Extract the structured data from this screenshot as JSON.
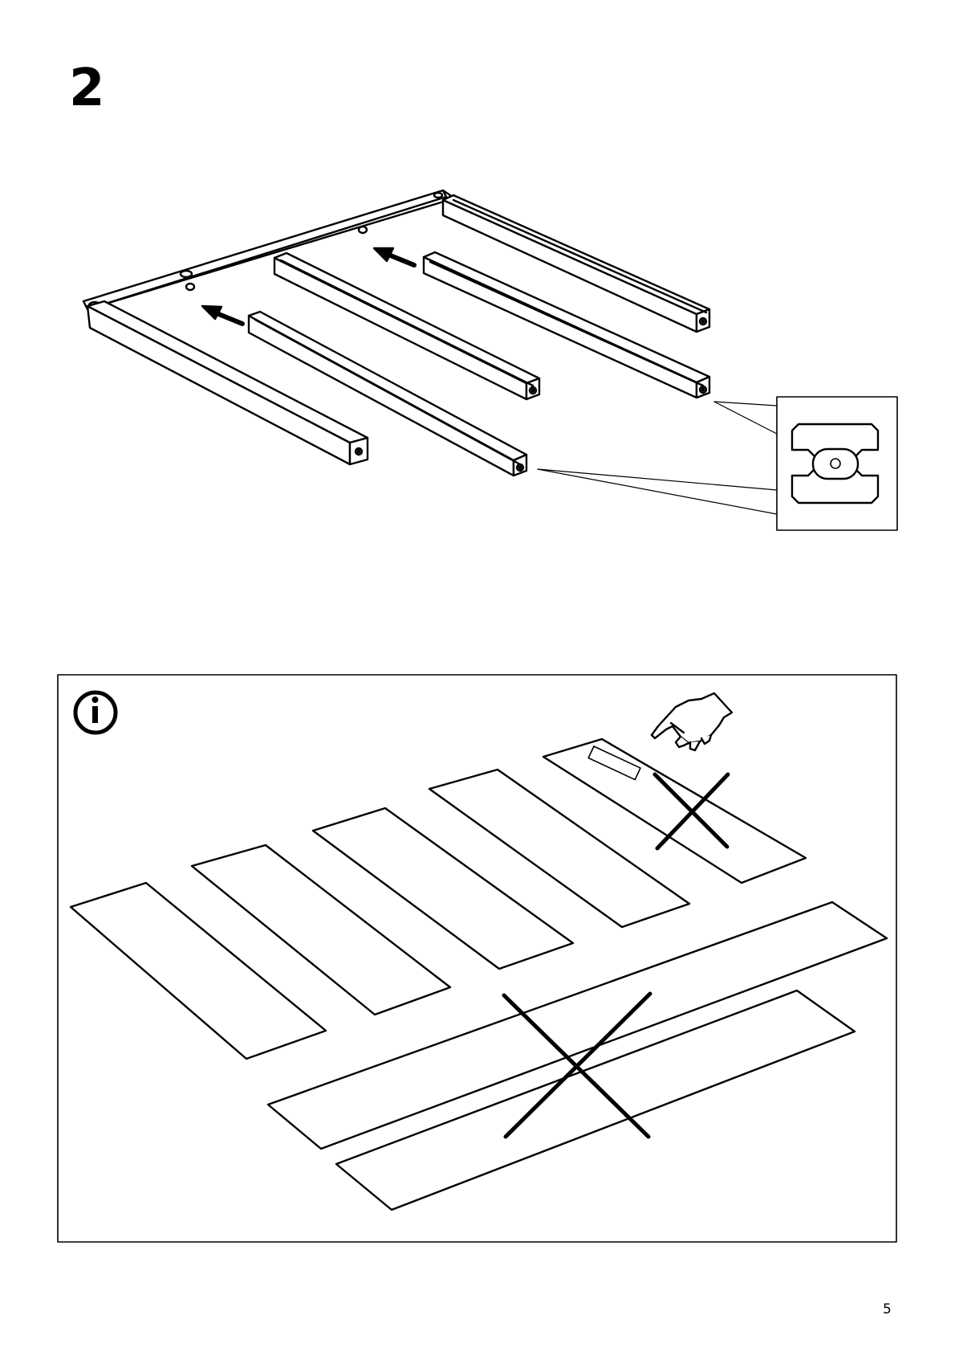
{
  "step": {
    "number": "2"
  },
  "page": {
    "number": "5"
  },
  "icons": {
    "info": "info-icon",
    "arrow": "arrow-left-icon",
    "hand": "pointing-hand-icon",
    "cross": "cross-mark-icon"
  },
  "colors": {
    "ink": "#000000",
    "paper": "#ffffff"
  }
}
